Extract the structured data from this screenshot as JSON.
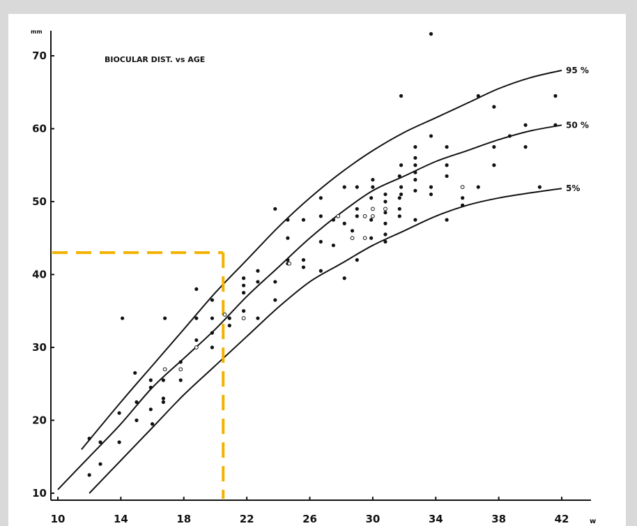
{
  "chart_data": {
    "type": "scatter",
    "title": "BIOCULAR DIST. vs AGE",
    "ylabel": "mm",
    "xlabel": "w",
    "xlim": [
      9.5,
      43.5
    ],
    "ylim": [
      9,
      73
    ],
    "x_ticks": [
      10,
      14,
      18,
      22,
      26,
      30,
      34,
      38,
      42
    ],
    "y_ticks": [
      10,
      20,
      30,
      40,
      50,
      60,
      70
    ],
    "grid": false,
    "colors": {
      "ink": "#111111",
      "highlight": "#f2b200",
      "frame": "#d9d9d9"
    },
    "curves": [
      {
        "name": "95 %",
        "x": [
          11.5,
          14,
          16,
          18,
          20,
          22,
          24,
          26,
          28,
          30,
          32,
          34,
          36,
          38,
          40,
          42
        ],
        "y": [
          16,
          22.5,
          27.5,
          32.5,
          37.5,
          42,
          46.5,
          50.5,
          54,
          57,
          59.5,
          61.5,
          63.5,
          65.5,
          67,
          68
        ]
      },
      {
        "name": "50 %",
        "x": [
          10,
          12,
          14,
          16,
          18,
          20,
          22,
          24,
          26,
          28,
          30,
          32,
          34,
          36,
          38,
          40,
          42
        ],
        "y": [
          10.5,
          15,
          19.5,
          24.5,
          28.5,
          32.5,
          37,
          41,
          45,
          48.5,
          51.5,
          53.5,
          55.5,
          57,
          58.5,
          59.7,
          60.5
        ]
      },
      {
        "name": "5%",
        "x": [
          12,
          14,
          16,
          18,
          20,
          22,
          24,
          26,
          28,
          30,
          32,
          34,
          36,
          38,
          40,
          42
        ],
        "y": [
          10,
          14.5,
          19,
          23.5,
          27.5,
          31.5,
          35.5,
          39,
          41.5,
          44,
          46,
          48,
          49.5,
          50.5,
          51.2,
          51.8
        ]
      }
    ],
    "reference_lines": {
      "x": 20.5,
      "y": 43
    },
    "points_filled": [
      [
        12,
        17.5
      ],
      [
        12,
        12.5
      ],
      [
        12.7,
        17
      ],
      [
        12.7,
        14
      ],
      [
        13.9,
        17
      ],
      [
        13.9,
        21
      ],
      [
        14.1,
        34
      ],
      [
        14.9,
        26.5
      ],
      [
        15,
        22.5
      ],
      [
        15,
        20
      ],
      [
        15.9,
        21.5
      ],
      [
        15.9,
        24.5
      ],
      [
        15.9,
        25.5
      ],
      [
        16,
        19.5
      ],
      [
        16.7,
        25.5
      ],
      [
        16.7,
        23
      ],
      [
        16.7,
        22.5
      ],
      [
        16.8,
        34
      ],
      [
        17.8,
        28
      ],
      [
        17.8,
        25.5
      ],
      [
        18.8,
        31
      ],
      [
        18.8,
        38
      ],
      [
        18.8,
        34
      ],
      [
        19.8,
        30
      ],
      [
        19.8,
        32
      ],
      [
        19.8,
        34
      ],
      [
        19.8,
        36.5
      ],
      [
        20.9,
        34
      ],
      [
        20.9,
        33
      ],
      [
        21.8,
        39.5
      ],
      [
        21.8,
        38.5
      ],
      [
        21.8,
        37.5
      ],
      [
        21.8,
        35
      ],
      [
        22.7,
        40.5
      ],
      [
        22.7,
        39
      ],
      [
        22.7,
        34
      ],
      [
        23.8,
        49
      ],
      [
        23.8,
        39
      ],
      [
        23.8,
        36.5
      ],
      [
        24.6,
        47.5
      ],
      [
        24.6,
        45
      ],
      [
        24.6,
        42
      ],
      [
        24.6,
        41.5
      ],
      [
        25.6,
        47.5
      ],
      [
        25.6,
        42
      ],
      [
        25.6,
        41
      ],
      [
        26.7,
        50.5
      ],
      [
        26.7,
        48
      ],
      [
        26.7,
        44.5
      ],
      [
        26.7,
        40.5
      ],
      [
        27.5,
        47.5
      ],
      [
        27.5,
        44
      ],
      [
        28.2,
        52
      ],
      [
        28.2,
        47
      ],
      [
        28.2,
        39.5
      ],
      [
        28.7,
        46
      ],
      [
        29,
        52
      ],
      [
        29,
        49
      ],
      [
        29,
        48
      ],
      [
        29,
        42
      ],
      [
        29.9,
        50.5
      ],
      [
        29.9,
        47.5
      ],
      [
        29.9,
        45
      ],
      [
        30,
        53
      ],
      [
        30,
        52
      ],
      [
        30.8,
        51
      ],
      [
        30.8,
        50
      ],
      [
        30.8,
        48.5
      ],
      [
        30.8,
        47
      ],
      [
        30.8,
        45.5
      ],
      [
        30.8,
        44.5
      ],
      [
        31.7,
        53.5
      ],
      [
        31.7,
        50.5
      ],
      [
        31.7,
        49
      ],
      [
        31.7,
        48
      ],
      [
        31.8,
        64.5
      ],
      [
        31.8,
        55
      ],
      [
        31.8,
        52
      ],
      [
        31.8,
        51
      ],
      [
        32.7,
        57.5
      ],
      [
        32.7,
        56
      ],
      [
        32.7,
        55
      ],
      [
        32.7,
        54
      ],
      [
        32.7,
        53
      ],
      [
        32.7,
        51.5
      ],
      [
        32.7,
        47.5
      ],
      [
        33.7,
        73
      ],
      [
        33.7,
        59
      ],
      [
        33.7,
        52
      ],
      [
        33.7,
        51
      ],
      [
        34.7,
        57.5
      ],
      [
        34.7,
        55
      ],
      [
        34.7,
        53.5
      ],
      [
        34.7,
        47.5
      ],
      [
        35.7,
        50.5
      ],
      [
        35.7,
        49.5
      ],
      [
        36.7,
        64.5
      ],
      [
        36.7,
        52
      ],
      [
        37.7,
        63
      ],
      [
        37.7,
        57.5
      ],
      [
        37.7,
        55
      ],
      [
        38.7,
        59
      ],
      [
        39.7,
        60.5
      ],
      [
        39.7,
        57.5
      ],
      [
        40.6,
        52
      ],
      [
        41.6,
        64.5
      ],
      [
        41.6,
        60.5
      ]
    ],
    "points_open": [
      [
        16.8,
        27
      ],
      [
        17.8,
        27
      ],
      [
        18.8,
        30
      ],
      [
        20.6,
        34.5
      ],
      [
        21.8,
        34
      ],
      [
        24.7,
        41.5
      ],
      [
        27.8,
        48
      ],
      [
        28.7,
        45
      ],
      [
        29.5,
        45
      ],
      [
        29.5,
        48
      ],
      [
        30,
        48
      ],
      [
        30,
        49
      ],
      [
        30.8,
        49
      ],
      [
        35.7,
        52
      ]
    ]
  }
}
